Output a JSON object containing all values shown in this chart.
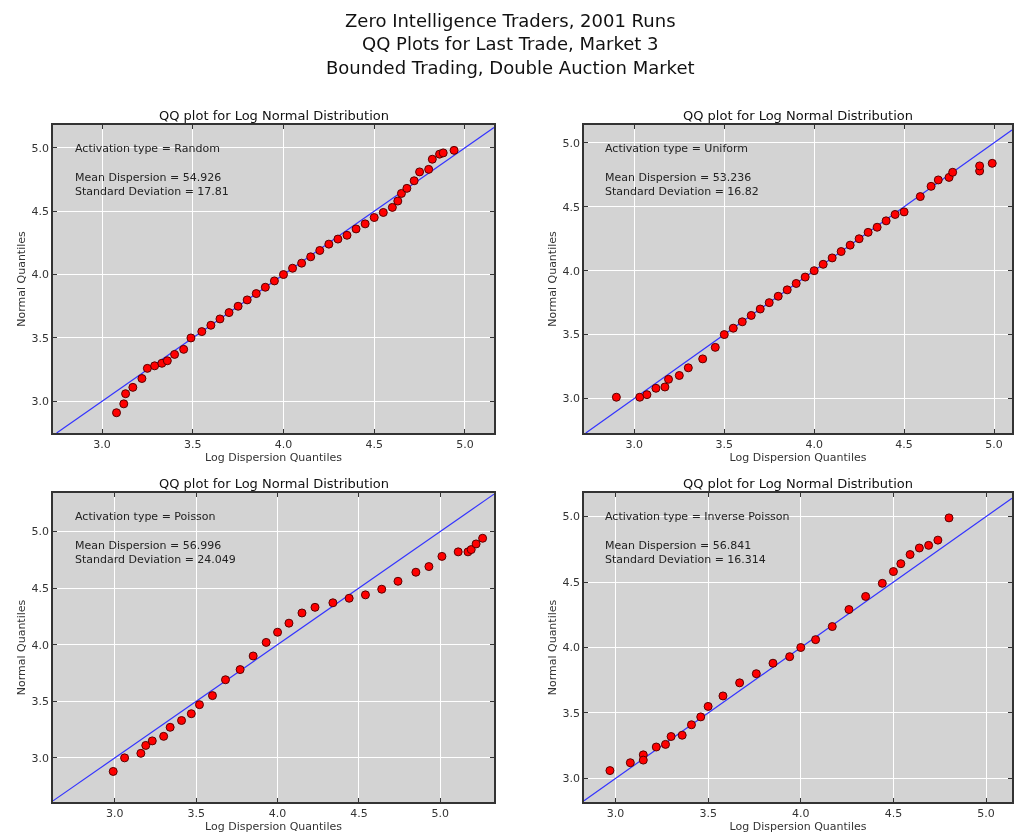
{
  "chart_data": [
    {
      "type": "scatter",
      "title": "QQ plot for Log Normal Distribution",
      "xlabel": "Log Dispersion Quantiles",
      "ylabel": "Normal Quantiles",
      "annotations": [
        "Zero Intelligence Traders, 2001 Runs\nQQ Plots for Last Trade, Market 3\nBounded Trading, Double Auction Market",
        "Activation type = Random\n\nMean Dispersion = 54.926\nStandard Deviation = 17.81"
      ],
      "xlim": [
        2.73,
        5.16
      ],
      "ylim": [
        2.75,
        5.18
      ],
      "xticks": [
        {
          "value": 3,
          "label": "3.0"
        },
        {
          "value": 3.5,
          "label": "3.5"
        },
        {
          "value": 4,
          "label": "4.0"
        },
        {
          "value": 4.5,
          "label": "4.5"
        },
        {
          "value": 5,
          "label": "5.0"
        }
      ],
      "yticks": [
        {
          "value": 3,
          "label": "3.0"
        },
        {
          "value": 3.5,
          "label": "3.5"
        },
        {
          "value": 4,
          "label": "4.0"
        },
        {
          "value": 4.5,
          "label": "4.5"
        },
        {
          "value": 5,
          "label": "5.0"
        }
      ],
      "grid": true,
      "series": [
        {
          "type": "line",
          "color": "#3333ff",
          "line_style": "solid",
          "x": [
            2.75,
            5.16
          ],
          "values": [
            2.75,
            5.16
          ]
        },
        {
          "color": "#ff0000",
          "marker": "circle",
          "x": [
            3.08,
            3.12,
            3.13,
            3.17,
            3.22,
            3.25,
            3.29,
            3.33,
            3.36,
            3.4,
            3.45,
            3.49,
            3.55,
            3.6,
            3.65,
            3.7,
            3.75,
            3.8,
            3.85,
            3.9,
            3.95,
            4.0,
            4.05,
            4.1,
            4.15,
            4.2,
            4.25,
            4.3,
            4.35,
            4.4,
            4.45,
            4.5,
            4.55,
            4.6,
            4.63,
            4.65,
            4.68,
            4.72,
            4.75,
            4.8,
            4.82,
            4.86,
            4.88,
            4.94
          ],
          "values": [
            2.91,
            2.98,
            3.06,
            3.11,
            3.18,
            3.26,
            3.28,
            3.3,
            3.32,
            3.37,
            3.41,
            3.5,
            3.55,
            3.6,
            3.65,
            3.7,
            3.75,
            3.8,
            3.85,
            3.9,
            3.95,
            4.0,
            4.05,
            4.09,
            4.14,
            4.19,
            4.24,
            4.28,
            4.31,
            4.36,
            4.4,
            4.45,
            4.49,
            4.53,
            4.58,
            4.64,
            4.68,
            4.74,
            4.81,
            4.83,
            4.91,
            4.95,
            4.96,
            4.98
          ]
        }
      ]
    },
    {
      "type": "scatter",
      "title": "QQ plot for Log Normal Distribution",
      "xlabel": "Log Dispersion Quantiles",
      "ylabel": "Normal Quantiles",
      "annotations": [
        "Activation type = Uniform\n\nMean Dispersion = 53.236\nStandard Deviation = 16.82"
      ],
      "xlim": [
        2.72,
        5.1
      ],
      "ylim": [
        2.73,
        5.14
      ],
      "xticks": [
        {
          "value": 3,
          "label": "3.0"
        },
        {
          "value": 3.5,
          "label": "3.5"
        },
        {
          "value": 4,
          "label": "4.0"
        },
        {
          "value": 4.5,
          "label": "4.5"
        },
        {
          "value": 5,
          "label": "5.0"
        }
      ],
      "yticks": [
        {
          "value": 3,
          "label": "3.0"
        },
        {
          "value": 3.5,
          "label": "3.5"
        },
        {
          "value": 4,
          "label": "4.0"
        },
        {
          "value": 4.5,
          "label": "4.5"
        },
        {
          "value": 5,
          "label": "5.0"
        }
      ],
      "grid": true,
      "series": [
        {
          "type": "line",
          "color": "#3333ff",
          "line_style": "solid",
          "x": [
            2.73,
            5.1
          ],
          "values": [
            2.73,
            5.1
          ]
        },
        {
          "color": "#ff0000",
          "marker": "circle",
          "x": [
            2.9,
            3.03,
            3.07,
            3.12,
            3.17,
            3.19,
            3.25,
            3.3,
            3.38,
            3.45,
            3.5,
            3.55,
            3.6,
            3.65,
            3.7,
            3.75,
            3.8,
            3.85,
            3.9,
            3.95,
            4.0,
            4.05,
            4.1,
            4.15,
            4.2,
            4.25,
            4.3,
            4.35,
            4.4,
            4.45,
            4.5,
            4.59,
            4.65,
            4.69,
            4.75,
            4.77,
            4.92,
            4.92,
            4.99
          ],
          "values": [
            3.01,
            3.01,
            3.03,
            3.08,
            3.09,
            3.15,
            3.18,
            3.24,
            3.31,
            3.4,
            3.5,
            3.55,
            3.6,
            3.65,
            3.7,
            3.75,
            3.8,
            3.85,
            3.9,
            3.95,
            4.0,
            4.05,
            4.1,
            4.15,
            4.2,
            4.25,
            4.3,
            4.34,
            4.39,
            4.44,
            4.46,
            4.58,
            4.66,
            4.71,
            4.73,
            4.77,
            4.78,
            4.82,
            4.84
          ]
        }
      ]
    },
    {
      "type": "scatter",
      "title": "QQ plot for Log Normal Distribution",
      "xlabel": "Log Dispersion Quantiles",
      "ylabel": "Normal Quantiles",
      "annotations": [
        "Activation type = Poisson\n\nMean Dispersion = 56.996\nStandard Deviation = 24.049"
      ],
      "xlim": [
        2.62,
        5.33
      ],
      "ylim": [
        2.61,
        5.34
      ],
      "xticks": [
        {
          "value": 3,
          "label": "3.0"
        },
        {
          "value": 3.5,
          "label": "3.5"
        },
        {
          "value": 4,
          "label": "4.0"
        },
        {
          "value": 4.5,
          "label": "4.5"
        },
        {
          "value": 5,
          "label": "5.0"
        }
      ],
      "yticks": [
        {
          "value": 3,
          "label": "3.0"
        },
        {
          "value": 3.5,
          "label": "3.5"
        },
        {
          "value": 4,
          "label": "4.0"
        },
        {
          "value": 4.5,
          "label": "4.5"
        },
        {
          "value": 5,
          "label": "5.0"
        }
      ],
      "grid": true,
      "series": [
        {
          "type": "line",
          "color": "#3333ff",
          "line_style": "solid",
          "x": [
            2.62,
            5.33
          ],
          "values": [
            2.62,
            5.33
          ]
        },
        {
          "color": "#ff0000",
          "marker": "circle",
          "x": [
            2.99,
            3.06,
            3.16,
            3.19,
            3.23,
            3.3,
            3.34,
            3.41,
            3.47,
            3.52,
            3.6,
            3.68,
            3.77,
            3.85,
            3.93,
            4.0,
            4.07,
            4.15,
            4.23,
            4.34,
            4.44,
            4.54,
            4.64,
            4.74,
            4.85,
            4.93,
            5.01,
            5.11,
            5.17,
            5.19,
            5.22,
            5.26
          ],
          "values": [
            2.88,
            3.0,
            3.04,
            3.11,
            3.15,
            3.19,
            3.27,
            3.33,
            3.39,
            3.47,
            3.55,
            3.69,
            3.78,
            3.9,
            4.02,
            4.11,
            4.19,
            4.28,
            4.33,
            4.37,
            4.41,
            4.44,
            4.49,
            4.56,
            4.64,
            4.69,
            4.78,
            4.82,
            4.82,
            4.84,
            4.89,
            4.94
          ]
        }
      ]
    },
    {
      "type": "scatter",
      "title": "QQ plot for Log Normal Distribution",
      "xlabel": "Log Dispersion Quantiles",
      "ylabel": "Normal Quantiles",
      "annotations": [
        "Activation type = Inverse Poisson\n\nMean Dispersion = 56.841\nStandard Deviation = 16.314"
      ],
      "xlim": [
        2.83,
        5.14
      ],
      "ylim": [
        2.82,
        5.18
      ],
      "xticks": [
        {
          "value": 3,
          "label": "3.0"
        },
        {
          "value": 3.5,
          "label": "3.5"
        },
        {
          "value": 4,
          "label": "4.0"
        },
        {
          "value": 4.5,
          "label": "4.5"
        },
        {
          "value": 5,
          "label": "5.0"
        }
      ],
      "yticks": [
        {
          "value": 3,
          "label": "3.0"
        },
        {
          "value": 3.5,
          "label": "3.5"
        },
        {
          "value": 4,
          "label": "4.0"
        },
        {
          "value": 4.5,
          "label": "4.5"
        },
        {
          "value": 5,
          "label": "5.0"
        }
      ],
      "grid": true,
      "series": [
        {
          "type": "line",
          "color": "#3333ff",
          "line_style": "solid",
          "x": [
            2.83,
            5.14
          ],
          "values": [
            2.83,
            5.14
          ]
        },
        {
          "color": "#ff0000",
          "marker": "circle",
          "x": [
            2.97,
            3.08,
            3.15,
            3.15,
            3.22,
            3.27,
            3.3,
            3.36,
            3.41,
            3.46,
            3.5,
            3.58,
            3.67,
            3.76,
            3.85,
            3.94,
            4.0,
            4.08,
            4.17,
            4.26,
            4.35,
            4.44,
            4.5,
            4.54,
            4.59,
            4.64,
            4.69,
            4.74,
            4.8
          ],
          "values": [
            3.06,
            3.12,
            3.18,
            3.14,
            3.24,
            3.26,
            3.32,
            3.33,
            3.41,
            3.47,
            3.55,
            3.63,
            3.73,
            3.8,
            3.88,
            3.93,
            4.0,
            4.06,
            4.16,
            4.29,
            4.39,
            4.49,
            4.58,
            4.64,
            4.71,
            4.76,
            4.78,
            4.82,
            4.99
          ]
        }
      ]
    }
  ]
}
